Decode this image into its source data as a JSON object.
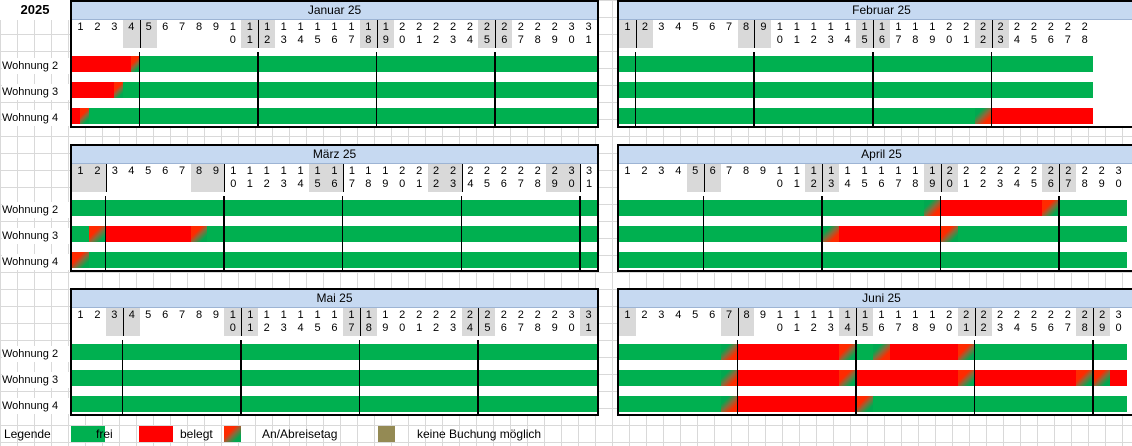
{
  "year": "2025",
  "rows": [
    "Wohnung 2",
    "Wohnung 3",
    "Wohnung 4"
  ],
  "months": [
    {
      "title": "Januar 25",
      "days": 31,
      "weekend": [
        4,
        5,
        11,
        12,
        18,
        19,
        25,
        26
      ],
      "seps": [
        5,
        12,
        19,
        26
      ],
      "bookings": [
        [
          [
            1,
            4.5,
            "red"
          ],
          [
            4.5,
            5,
            "ch"
          ]
        ],
        [
          [
            1,
            3.5,
            "red"
          ],
          [
            3.5,
            4,
            "ch"
          ]
        ],
        [
          [
            1,
            1.5,
            "red"
          ],
          [
            1.5,
            2,
            "ch"
          ]
        ]
      ]
    },
    {
      "title": "Februar 25",
      "days": 28,
      "weekend": [
        1,
        2,
        8,
        9,
        15,
        16,
        22,
        23
      ],
      "seps": [
        2,
        9,
        16,
        23
      ],
      "bookings": [
        [],
        [],
        [
          [
            22,
            23,
            "chr"
          ],
          [
            23,
            29,
            "red"
          ]
        ]
      ]
    },
    {
      "title": "März 25",
      "days": 31,
      "weekend": [
        1,
        2,
        8,
        9,
        15,
        16,
        22,
        23,
        29,
        30
      ],
      "seps": [
        3,
        10,
        17,
        24,
        31
      ],
      "bookings": [
        [],
        [
          [
            2,
            3,
            "ch"
          ],
          [
            3,
            8,
            "red"
          ],
          [
            8,
            9,
            "ch"
          ]
        ],
        [
          [
            1,
            2,
            "ch"
          ]
        ]
      ]
    },
    {
      "title": "April 25",
      "days": 30,
      "weekend": [
        5,
        6,
        12,
        13,
        19,
        20,
        26,
        27
      ],
      "seps": [
        6,
        13,
        20,
        27
      ],
      "bookings": [
        [
          [
            19,
            20,
            "chr"
          ],
          [
            20,
            26,
            "red"
          ],
          [
            26,
            27,
            "ch"
          ]
        ],
        [
          [
            13,
            14,
            "chr"
          ],
          [
            14,
            20,
            "red"
          ],
          [
            20,
            21,
            "ch"
          ]
        ],
        []
      ]
    },
    {
      "title": "Mai 25",
      "days": 31,
      "weekend": [
        3,
        4,
        10,
        11,
        17,
        18,
        24,
        25,
        31
      ],
      "seps": [
        4,
        11,
        18,
        25
      ],
      "bookings": [
        [],
        [],
        []
      ]
    },
    {
      "title": "Juni 25",
      "days": 30,
      "weekend": [
        1,
        7,
        8,
        14,
        15,
        21,
        22,
        28,
        29
      ],
      "seps": [
        8,
        15,
        22,
        29
      ],
      "bookings": [
        [
          [
            7,
            8,
            "chr"
          ],
          [
            8,
            14,
            "red"
          ],
          [
            14,
            15,
            "ch"
          ],
          [
            16,
            17,
            "chr"
          ],
          [
            17,
            21,
            "red"
          ],
          [
            21,
            22,
            "ch"
          ]
        ],
        [
          [
            7,
            8,
            "chr"
          ],
          [
            8,
            14,
            "red"
          ],
          [
            14,
            15,
            "ch"
          ],
          [
            15,
            21,
            "red"
          ],
          [
            21,
            22,
            "ch"
          ],
          [
            22,
            28,
            "red"
          ],
          [
            28,
            29,
            "ch"
          ],
          [
            29,
            30,
            "ch"
          ],
          [
            30,
            31,
            "red"
          ]
        ],
        [
          [
            7,
            8,
            "chr"
          ],
          [
            8,
            15,
            "red"
          ],
          [
            15,
            16,
            "ch"
          ]
        ]
      ]
    }
  ],
  "legend": {
    "label": "Legende",
    "items": [
      {
        "text": "frei",
        "color": "#00b050"
      },
      {
        "text": "belegt",
        "color": "#ff0000"
      },
      {
        "text": "An/Abreisetag",
        "color": "mix"
      },
      {
        "text": "keine Buchung möglich",
        "color": "#948a54"
      }
    ]
  }
}
